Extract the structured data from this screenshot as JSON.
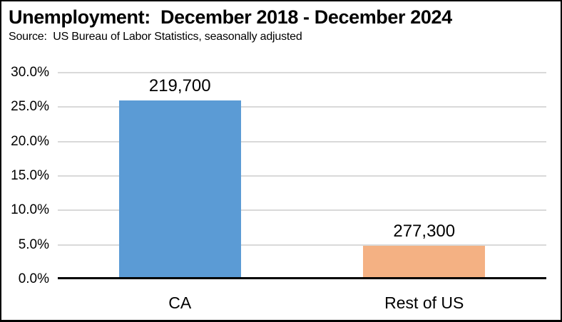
{
  "header": {
    "title": "Unemployment:  December 2018 - December 2024",
    "subtitle": "Source:  US Bureau of Labor Statistics, seasonally adjusted"
  },
  "chart_data": {
    "type": "bar",
    "title": "Unemployment:  December 2018 - December 2024",
    "subtitle": "Source:  US Bureau of Labor Statistics, seasonally adjusted",
    "categories": [
      "CA",
      "Rest of US"
    ],
    "values": [
      26.0,
      4.9
    ],
    "units": "%",
    "bar_labels": [
      "219,700",
      "277,300"
    ],
    "bar_colors": [
      "#5b9bd5",
      "#f4b183"
    ],
    "xlabel": "",
    "ylabel": "",
    "ylim": [
      0,
      30
    ],
    "ytick_interval": 5,
    "ytick_labels": [
      "0.0%",
      "5.0%",
      "10.0%",
      "15.0%",
      "20.0%",
      "25.0%",
      "30.0%"
    ],
    "grid": true,
    "gridline_color": "#d9d9d9",
    "axis_color": "#000000",
    "background": "#ffffff",
    "legend_position": "none"
  }
}
